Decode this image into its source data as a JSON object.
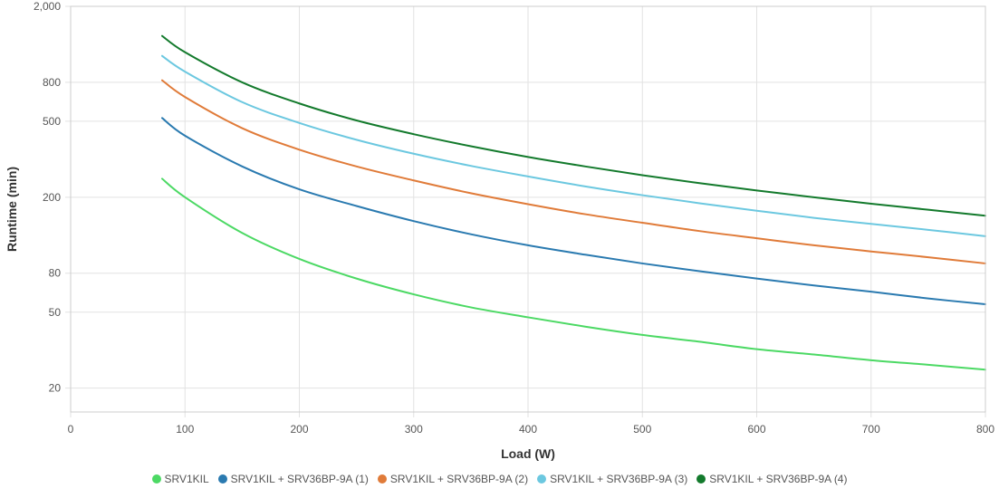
{
  "chart_data": {
    "type": "line",
    "xlabel": "Load (W)",
    "ylabel": "Runtime (min)",
    "yscale": "log",
    "xlim": [
      0,
      800
    ],
    "ylim": [
      15,
      2000
    ],
    "x_ticks": [
      0,
      100,
      200,
      300,
      400,
      500,
      600,
      700,
      800
    ],
    "x_tick_labels": [
      "0",
      "100",
      "200",
      "300",
      "400",
      "500",
      "600",
      "700",
      "800"
    ],
    "y_ticks": [
      20,
      50,
      80,
      200,
      500,
      800,
      2000
    ],
    "y_tick_labels": [
      "20",
      "50",
      "80",
      "200",
      "500",
      "800",
      "2,000"
    ],
    "legend_position": "bottom",
    "series": [
      {
        "name": "SRV1KIL",
        "color": "#4cd964",
        "x": [
          80,
          100,
          150,
          200,
          250,
          300,
          350,
          400,
          450,
          500,
          550,
          600,
          650,
          700,
          750,
          800
        ],
        "values": [
          250,
          200,
          130,
          95,
          75,
          62,
          53,
          47,
          42,
          38,
          35,
          32,
          30,
          28,
          26.5,
          25
        ]
      },
      {
        "name": "SRV1KIL + SRV36BP-9A (1)",
        "color": "#2a7ab0",
        "x": [
          80,
          100,
          150,
          200,
          250,
          300,
          350,
          400,
          450,
          500,
          550,
          600,
          650,
          700,
          750,
          800
        ],
        "values": [
          520,
          420,
          290,
          220,
          180,
          150,
          128,
          112,
          100,
          90,
          82,
          75,
          69,
          64,
          59,
          55
        ]
      },
      {
        "name": "SRV1KIL + SRV36BP-9A (2)",
        "color": "#e07b39",
        "x": [
          80,
          100,
          150,
          200,
          250,
          300,
          350,
          400,
          450,
          500,
          550,
          600,
          650,
          700,
          750,
          800
        ],
        "values": [
          820,
          670,
          460,
          355,
          290,
          245,
          210,
          184,
          163,
          147,
          133,
          122,
          112,
          104,
          97,
          90
        ]
      },
      {
        "name": "SRV1KIL + SRV36BP-9A (3)",
        "color": "#6cc8e0",
        "x": [
          80,
          100,
          150,
          200,
          250,
          300,
          350,
          400,
          450,
          500,
          550,
          600,
          650,
          700,
          750,
          800
        ],
        "values": [
          1100,
          910,
          630,
          490,
          400,
          338,
          292,
          257,
          228,
          205,
          186,
          170,
          156,
          145,
          135,
          125
        ]
      },
      {
        "name": "SRV1KIL + SRV36BP-9A (4)",
        "color": "#137a2c",
        "x": [
          80,
          100,
          150,
          200,
          250,
          300,
          350,
          400,
          450,
          500,
          550,
          600,
          650,
          700,
          750,
          800
        ],
        "values": [
          1400,
          1150,
          800,
          620,
          505,
          428,
          370,
          325,
          290,
          261,
          237,
          217,
          200,
          185,
          172,
          160
        ]
      }
    ]
  }
}
